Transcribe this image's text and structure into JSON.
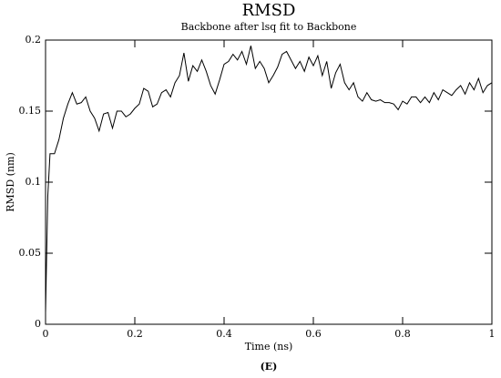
{
  "chart_data": {
    "type": "line",
    "title": "RMSD",
    "subtitle": "Backbone after lsq fit to Backbone",
    "x_label": "Time (ns)",
    "y_label": "RMSD (nm)",
    "caption": "(E)",
    "xlim": [
      0,
      1
    ],
    "ylim": [
      0,
      0.2
    ],
    "xticks": [
      0,
      0.2,
      0.4,
      0.6,
      0.8,
      1
    ],
    "yticks": [
      0,
      0.05,
      0.1,
      0.15,
      0.2
    ],
    "series": [
      {
        "color": "#000000",
        "x": [
          0,
          0.005,
          0.01,
          0.02,
          0.03,
          0.04,
          0.05,
          0.06,
          0.07,
          0.08,
          0.09,
          0.1,
          0.11,
          0.12,
          0.13,
          0.14,
          0.15,
          0.16,
          0.17,
          0.18,
          0.19,
          0.2,
          0.21,
          0.22,
          0.23,
          0.24,
          0.25,
          0.26,
          0.27,
          0.28,
          0.29,
          0.3,
          0.31,
          0.32,
          0.33,
          0.34,
          0.35,
          0.36,
          0.37,
          0.38,
          0.39,
          0.4,
          0.41,
          0.42,
          0.43,
          0.44,
          0.45,
          0.46,
          0.47,
          0.48,
          0.49,
          0.5,
          0.51,
          0.52,
          0.53,
          0.54,
          0.55,
          0.56,
          0.57,
          0.58,
          0.59,
          0.6,
          0.61,
          0.62,
          0.63,
          0.64,
          0.65,
          0.66,
          0.67,
          0.68,
          0.69,
          0.7,
          0.71,
          0.72,
          0.73,
          0.74,
          0.75,
          0.76,
          0.77,
          0.78,
          0.79,
          0.8,
          0.81,
          0.82,
          0.83,
          0.84,
          0.85,
          0.86,
          0.87,
          0.88,
          0.89,
          0.9,
          0.91,
          0.92,
          0.93,
          0.94,
          0.95,
          0.96,
          0.97,
          0.98,
          0.99,
          1
        ],
        "values": [
          0.008,
          0.09,
          0.12,
          0.12,
          0.13,
          0.145,
          0.155,
          0.163,
          0.155,
          0.156,
          0.16,
          0.15,
          0.145,
          0.136,
          0.148,
          0.149,
          0.138,
          0.15,
          0.15,
          0.146,
          0.148,
          0.152,
          0.155,
          0.166,
          0.164,
          0.153,
          0.155,
          0.163,
          0.165,
          0.16,
          0.17,
          0.175,
          0.191,
          0.171,
          0.182,
          0.178,
          0.186,
          0.178,
          0.168,
          0.162,
          0.172,
          0.183,
          0.185,
          0.19,
          0.186,
          0.192,
          0.183,
          0.196,
          0.18,
          0.185,
          0.18,
          0.17,
          0.175,
          0.181,
          0.19,
          0.192,
          0.186,
          0.18,
          0.185,
          0.178,
          0.188,
          0.182,
          0.189,
          0.175,
          0.185,
          0.166,
          0.177,
          0.183,
          0.17,
          0.165,
          0.17,
          0.16,
          0.157,
          0.163,
          0.158,
          0.157,
          0.158,
          0.156,
          0.156,
          0.155,
          0.151,
          0.157,
          0.155,
          0.16,
          0.16,
          0.156,
          0.16,
          0.156,
          0.163,
          0.158,
          0.165,
          0.163,
          0.161,
          0.165,
          0.168,
          0.162,
          0.17,
          0.165,
          0.173,
          0.163,
          0.168,
          0.17
        ]
      }
    ]
  }
}
